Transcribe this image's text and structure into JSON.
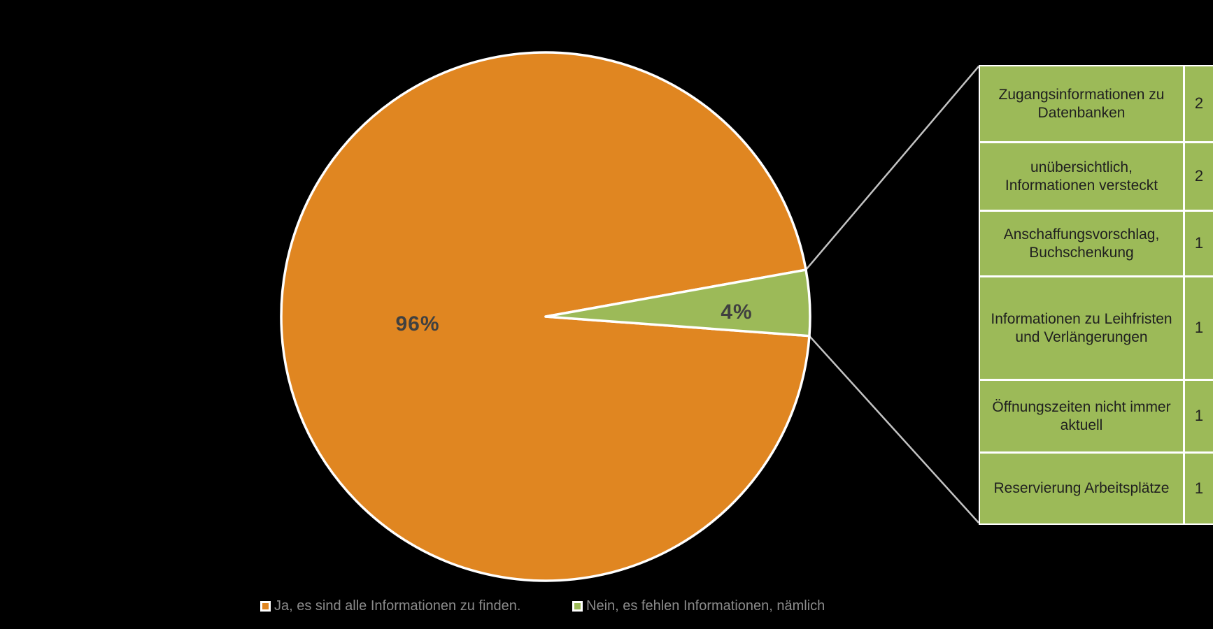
{
  "chart_data": {
    "type": "pie",
    "categories": [
      "Ja, es sind alle Informationen zu finden.",
      "Nein, es fehlen Informationen, nämlich"
    ],
    "values": [
      96,
      4
    ],
    "unit": "%",
    "data_labels": [
      "96%",
      "4%"
    ],
    "colors": [
      "#E08621",
      "#9CBA58"
    ],
    "rotation_deg": 94.2,
    "legend_position": "bottom",
    "background": "#000000",
    "callout_table": {
      "rows": [
        {
          "label": "Zugangsinformationen zu Datenbanken",
          "value": "2"
        },
        {
          "label": "unübersichtlich, Informationen versteckt",
          "value": "2"
        },
        {
          "label": "Anschaffungsvorschlag, Buchschenkung",
          "value": "1"
        },
        {
          "label": "Informationen zu Leihfristen und Verlängerungen",
          "value": "1"
        },
        {
          "label": "Öffnungszeiten nicht immer aktuell",
          "value": "1"
        },
        {
          "label": "Reservierung Arbeitsplätze",
          "value": "1"
        }
      ]
    }
  },
  "legend": {
    "items": [
      {
        "label": "Ja, es sind alle Informationen zu finden.",
        "color": "#E08621"
      },
      {
        "label": "Nein, es fehlen Informationen, nämlich",
        "color": "#9CBA58"
      }
    ]
  }
}
